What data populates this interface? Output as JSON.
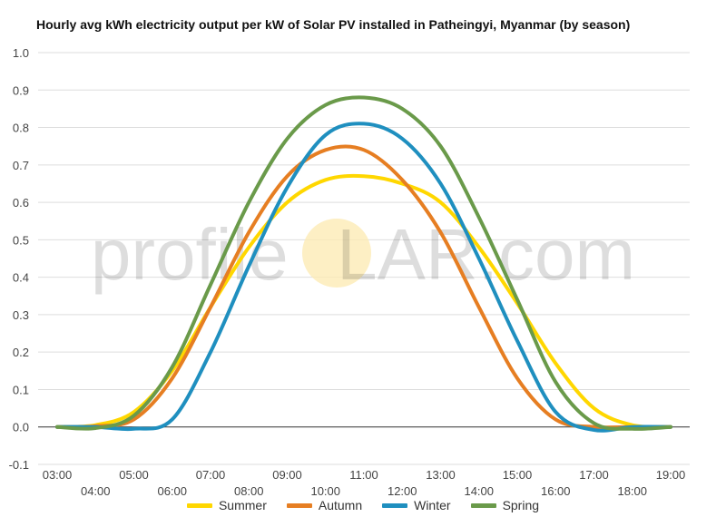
{
  "chart_data": {
    "type": "line",
    "title": "Hourly avg kWh electricity output per kW of Solar PV installed in Patheingyi, Myanmar (by season)",
    "watermark": {
      "pre": "profile",
      "mid": "S",
      "post": "LAR.com"
    },
    "ylim": [
      -0.1,
      1.0
    ],
    "yticks": [
      -0.1,
      0.0,
      0.1,
      0.2,
      0.3,
      0.4,
      0.5,
      0.6,
      0.7,
      0.8,
      0.9,
      1.0
    ],
    "ytick_labels": [
      "-0.1",
      "0.0",
      "0.1",
      "0.2",
      "0.3",
      "0.4",
      "0.5",
      "0.6",
      "0.7",
      "0.8",
      "0.9",
      "1.0"
    ],
    "x": [
      "03:00",
      "04:00",
      "05:00",
      "06:00",
      "07:00",
      "08:00",
      "09:00",
      "10:00",
      "11:00",
      "12:00",
      "13:00",
      "14:00",
      "15:00",
      "16:00",
      "17:00",
      "18:00",
      "19:00"
    ],
    "grid": true,
    "legend_position": "bottom",
    "series": [
      {
        "name": "Summer",
        "color": "#FFD700",
        "values": [
          0.0,
          0.005,
          0.04,
          0.15,
          0.32,
          0.48,
          0.6,
          0.66,
          0.67,
          0.65,
          0.6,
          0.48,
          0.33,
          0.17,
          0.05,
          0.005,
          0.0
        ]
      },
      {
        "name": "Autumn",
        "color": "#E67E22",
        "values": [
          0.0,
          0.002,
          0.02,
          0.13,
          0.32,
          0.52,
          0.67,
          0.74,
          0.74,
          0.66,
          0.52,
          0.32,
          0.13,
          0.02,
          0.0,
          0.0,
          0.0
        ]
      },
      {
        "name": "Winter",
        "color": "#1F8FBF",
        "values": [
          0.0,
          0.0,
          -0.005,
          0.02,
          0.2,
          0.43,
          0.64,
          0.78,
          0.81,
          0.77,
          0.65,
          0.45,
          0.23,
          0.04,
          -0.008,
          0.0,
          0.0
        ]
      },
      {
        "name": "Spring",
        "color": "#6A9A4A",
        "values": [
          0.0,
          -0.003,
          0.03,
          0.16,
          0.38,
          0.6,
          0.77,
          0.86,
          0.88,
          0.85,
          0.75,
          0.56,
          0.34,
          0.12,
          0.01,
          -0.005,
          0.0
        ]
      }
    ]
  }
}
